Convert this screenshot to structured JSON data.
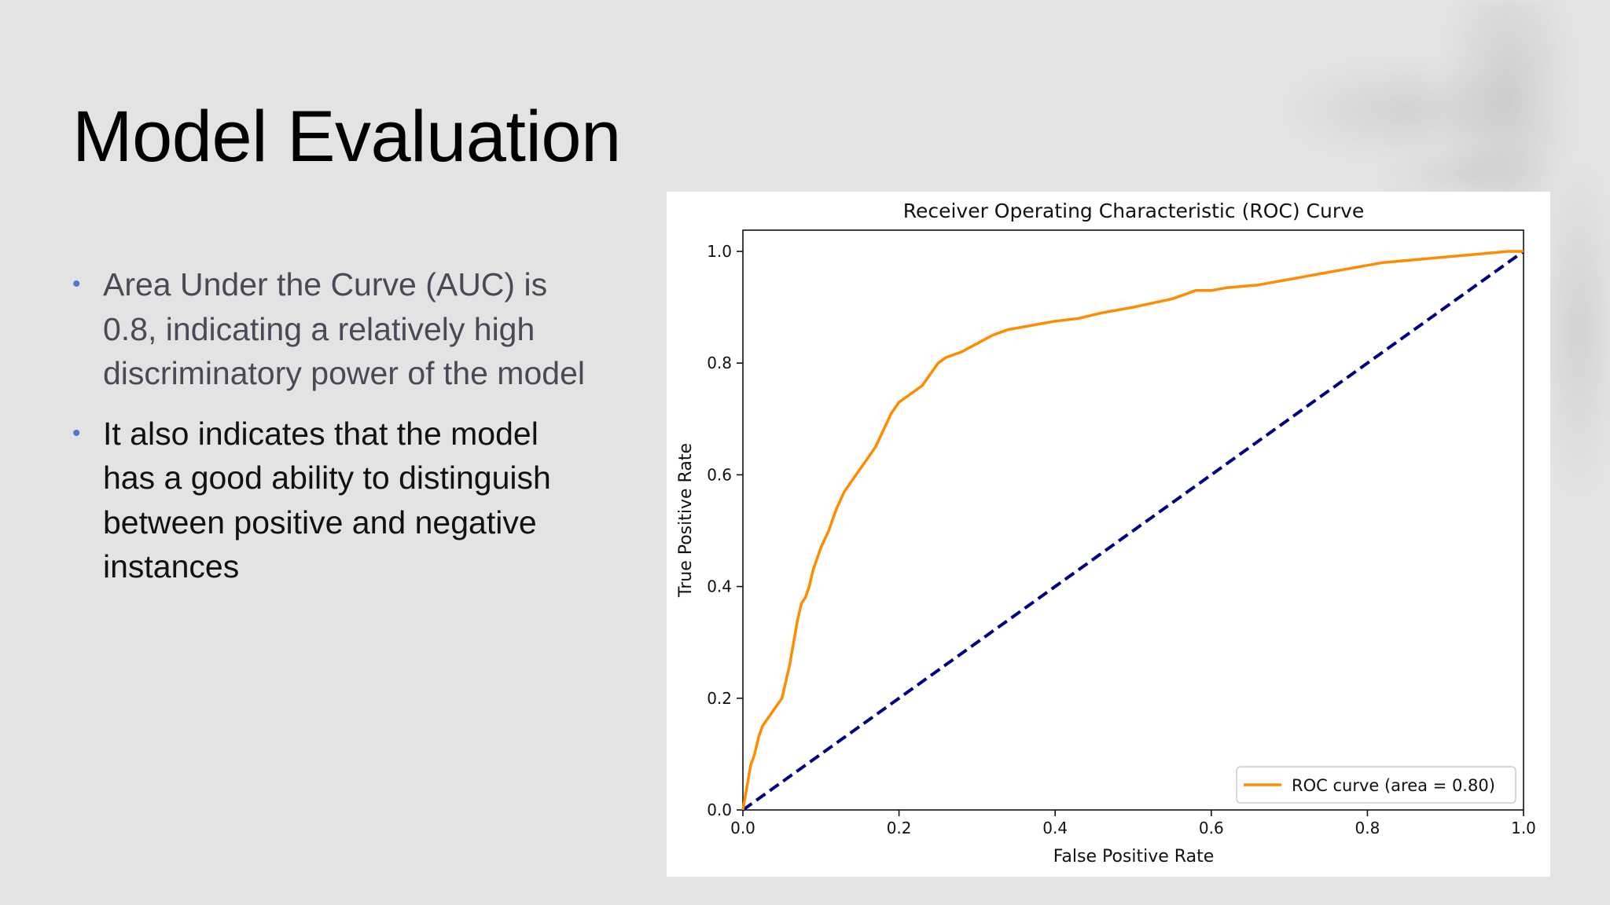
{
  "slide": {
    "title": "Model Evaluation",
    "bullets": [
      "Area Under the Curve (AUC) is 0.8, indicating a relatively high discriminatory power of the model",
      "It also indicates that the model has a good ability to distinguish between positive and negative instances"
    ],
    "bullet_symbol": "•",
    "accent_color": "#4a7ac9"
  },
  "chart_data": {
    "type": "line",
    "title": "Receiver Operating Characteristic (ROC) Curve",
    "xlabel": "False Positive Rate",
    "ylabel": "True Positive Rate",
    "xlim": [
      0.0,
      1.0
    ],
    "ylim": [
      0.0,
      1.0
    ],
    "x_ticks": [
      "0.0",
      "0.2",
      "0.4",
      "0.6",
      "0.8",
      "1.0"
    ],
    "y_ticks": [
      "0.0",
      "0.2",
      "0.4",
      "0.6",
      "0.8",
      "1.0"
    ],
    "grid": false,
    "legend_position": "lower-right",
    "series": [
      {
        "name": "ROC curve (area = 0.80)",
        "color": "#ff8c00",
        "style": "solid",
        "x": [
          0.0,
          0.005,
          0.01,
          0.015,
          0.02,
          0.025,
          0.03,
          0.04,
          0.05,
          0.055,
          0.06,
          0.065,
          0.07,
          0.075,
          0.08,
          0.085,
          0.09,
          0.1,
          0.11,
          0.12,
          0.13,
          0.14,
          0.15,
          0.16,
          0.17,
          0.18,
          0.19,
          0.2,
          0.21,
          0.22,
          0.23,
          0.24,
          0.25,
          0.26,
          0.27,
          0.28,
          0.3,
          0.32,
          0.34,
          0.36,
          0.38,
          0.4,
          0.43,
          0.46,
          0.5,
          0.55,
          0.58,
          0.6,
          0.62,
          0.66,
          0.7,
          0.74,
          0.78,
          0.82,
          0.86,
          0.9,
          0.94,
          0.98,
          1.0
        ],
        "y": [
          0.0,
          0.04,
          0.08,
          0.1,
          0.13,
          0.15,
          0.16,
          0.18,
          0.2,
          0.23,
          0.26,
          0.3,
          0.34,
          0.37,
          0.38,
          0.4,
          0.43,
          0.47,
          0.5,
          0.54,
          0.57,
          0.59,
          0.61,
          0.63,
          0.65,
          0.68,
          0.71,
          0.73,
          0.74,
          0.75,
          0.76,
          0.78,
          0.8,
          0.81,
          0.815,
          0.82,
          0.835,
          0.85,
          0.86,
          0.865,
          0.87,
          0.875,
          0.88,
          0.89,
          0.9,
          0.915,
          0.93,
          0.93,
          0.935,
          0.94,
          0.95,
          0.96,
          0.97,
          0.98,
          0.985,
          0.99,
          0.995,
          1.0,
          1.0
        ]
      },
      {
        "name": "",
        "color": "#000080",
        "style": "dashed",
        "x": [
          0.0,
          1.0
        ],
        "y": [
          0.0,
          1.0
        ]
      }
    ]
  }
}
